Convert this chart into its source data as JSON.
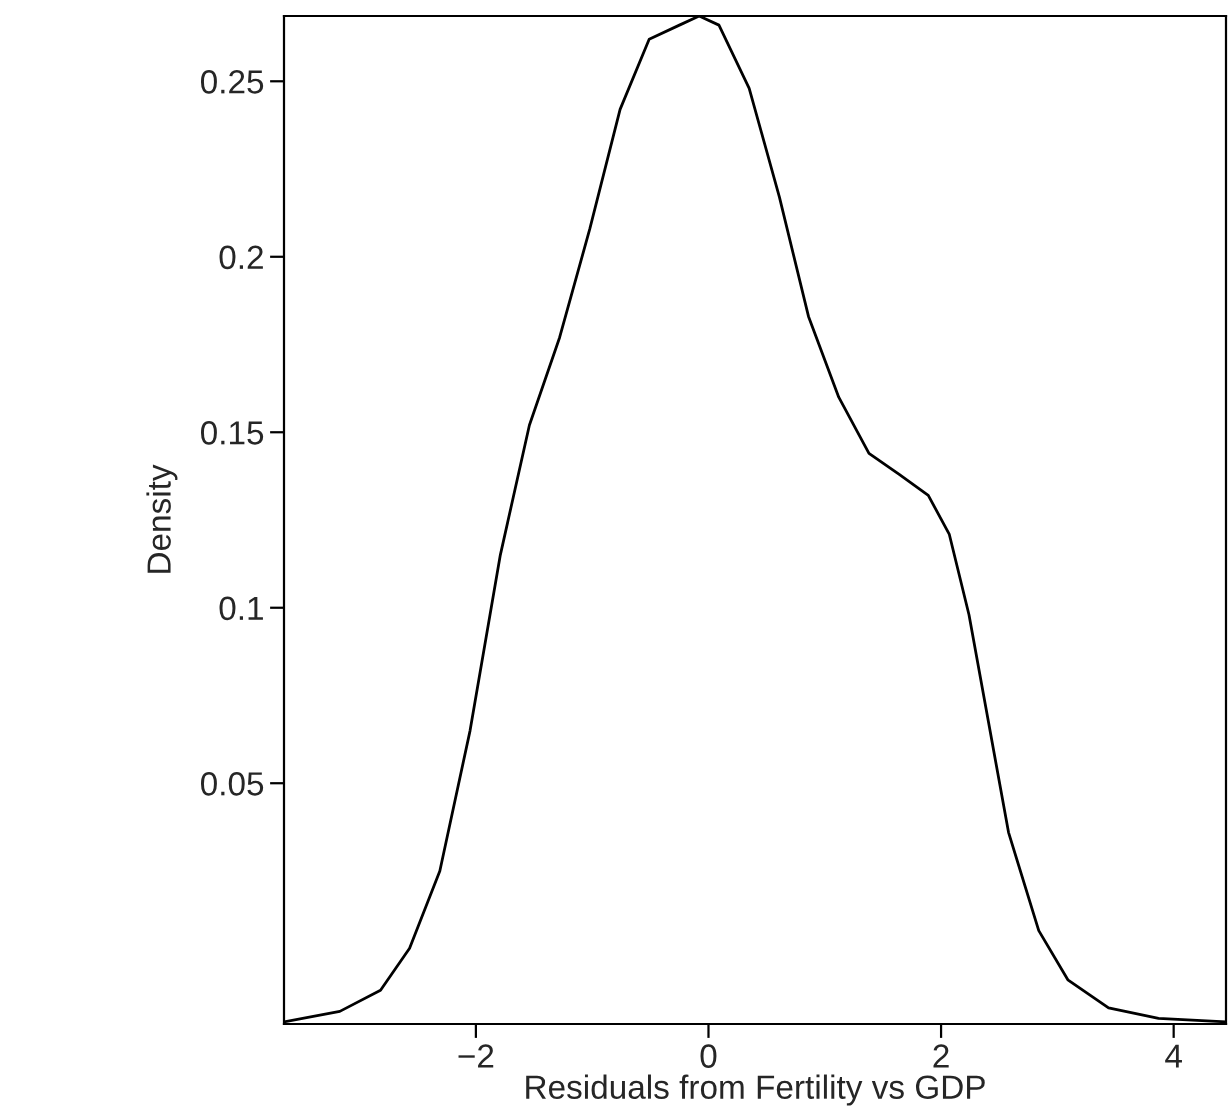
{
  "chart_data": {
    "type": "line",
    "xlabel": "Residuals from Fertility vs GDP",
    "ylabel": "Density",
    "x": [
      -3.65,
      -3.17,
      -2.82,
      -2.57,
      -2.31,
      -2.05,
      -1.79,
      -1.54,
      -1.28,
      -1.02,
      -0.76,
      -0.51,
      -0.25,
      -0.08,
      0.09,
      0.35,
      0.61,
      0.86,
      1.12,
      1.38,
      1.64,
      1.89,
      2.07,
      2.24,
      2.41,
      2.58,
      2.84,
      3.09,
      3.44,
      3.87,
      4.45
    ],
    "series": [
      {
        "color": "#000000",
        "values": [
          -0.018,
          -0.015,
          -0.009,
          0.003,
          0.025,
          0.065,
          0.115,
          0.152,
          0.177,
          0.208,
          0.242,
          0.262,
          0.266,
          0.2686,
          0.266,
          0.248,
          0.217,
          0.183,
          0.16,
          0.144,
          0.138,
          0.132,
          0.121,
          0.098,
          0.067,
          0.036,
          0.008,
          -0.006,
          -0.014,
          -0.017,
          -0.018
        ]
      }
    ],
    "xlim": [
      -3.65,
      4.45
    ],
    "ylim": [
      -0.0186,
      0.2686
    ],
    "xticks": [
      {
        "value": -2,
        "label": "−2"
      },
      0,
      2,
      4
    ],
    "yticks": [
      0.05,
      0.1,
      0.15,
      0.2,
      0.25
    ],
    "grid": false,
    "legend": false,
    "marker": "none",
    "line_style": "solid"
  }
}
